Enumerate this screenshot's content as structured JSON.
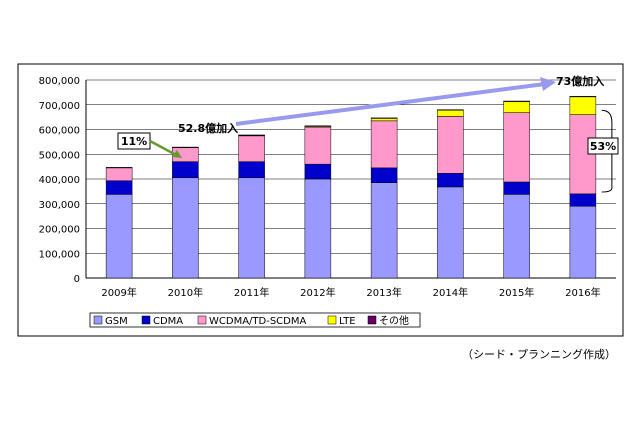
{
  "chart_data": {
    "type": "bar",
    "stacked": true,
    "categories": [
      "2009年",
      "2010年",
      "2011年",
      "2012年",
      "2013年",
      "2014年",
      "2015年",
      "2016年"
    ],
    "ylim": [
      0,
      800000
    ],
    "yticks": [
      "0",
      "100,000",
      "200,000",
      "300,000",
      "400,000",
      "500,000",
      "600,000",
      "700,000",
      "800,000"
    ],
    "grid": true,
    "legend_placement": "bottom-left",
    "series": [
      {
        "name": "GSM",
        "color": "#9999ff",
        "values": [
          338000,
          405000,
          405000,
          400000,
          385000,
          368000,
          338000,
          290000
        ]
      },
      {
        "name": "CDMA",
        "color": "#0000cc",
        "values": [
          55000,
          65000,
          65000,
          60000,
          60000,
          55000,
          50000,
          50000
        ]
      },
      {
        "name": "WCDMA/TD-SCDMA",
        "color": "#ff99cc",
        "values": [
          52000,
          57000,
          105000,
          150000,
          190000,
          230000,
          280000,
          320000
        ]
      },
      {
        "name": "LTE",
        "color": "#ffff00",
        "values": [
          0,
          0,
          1000,
          3000,
          10000,
          25000,
          45000,
          72000
        ]
      },
      {
        "name": "その他",
        "color": "#660066",
        "values": [
          2000,
          2000,
          2000,
          2000,
          2000,
          2000,
          2000,
          2000
        ]
      }
    ],
    "annotations": {
      "label_11pct": "11%",
      "label_52_8": "52.8億加入",
      "label_73": "73億加入",
      "label_53pct": "53%"
    }
  },
  "credit": "（シード・プランニング作成）"
}
